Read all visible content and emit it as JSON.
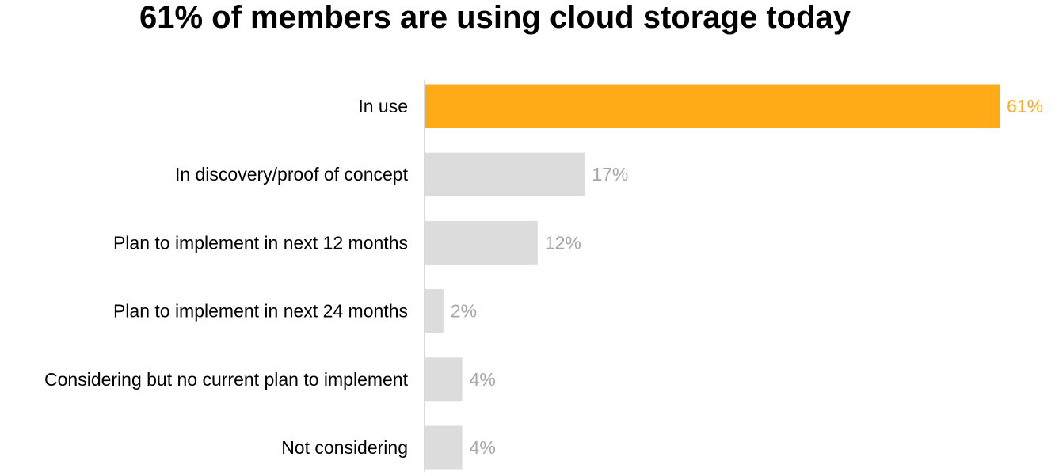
{
  "chart_data": {
    "type": "bar",
    "orientation": "horizontal",
    "title": "61% of members are using cloud storage today",
    "categories": [
      "In use",
      "In discovery/proof of concept",
      "Plan to implement in next 12 months",
      "Plan to implement in next 24 months",
      "Considering but no current plan to implement",
      "Not considering"
    ],
    "values": [
      61,
      17,
      12,
      2,
      4,
      4
    ],
    "value_labels": [
      "61%",
      "17%",
      "12%",
      "2%",
      "4%",
      "4%"
    ],
    "unit": "%",
    "highlight_index": 0,
    "colors": {
      "highlight_bar": "#FFAA17",
      "highlight_label": "#FFAA17",
      "default_bar": "#DCDCDC",
      "default_label": "#A6A6A6",
      "axis_line": "#D9D9D9"
    },
    "xlim": [
      0,
      61
    ],
    "grid": false,
    "legend": "none"
  }
}
